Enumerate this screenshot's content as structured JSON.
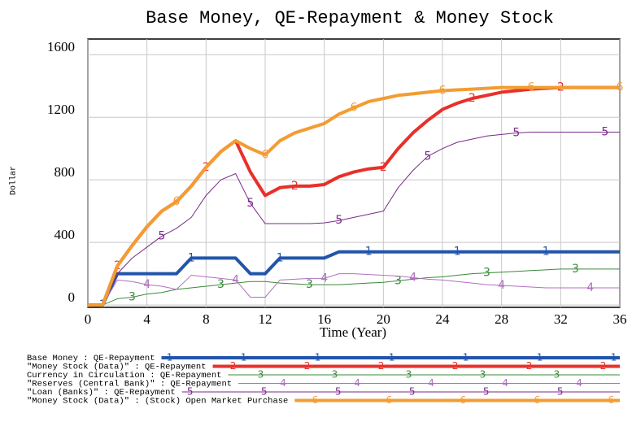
{
  "chart_data": {
    "type": "line",
    "title": "Base Money, QE-Repayment & Money Stock",
    "xlabel": "Time (Year)",
    "ylabel": "Dollar",
    "x": [
      0,
      1,
      2,
      3,
      4,
      5,
      6,
      7,
      8,
      9,
      10,
      11,
      12,
      13,
      14,
      15,
      16,
      17,
      18,
      19,
      20,
      21,
      22,
      23,
      24,
      25,
      26,
      27,
      28,
      29,
      30,
      31,
      32,
      33,
      34,
      35,
      36
    ],
    "xlim": [
      0,
      36
    ],
    "xticks": [
      0,
      4,
      8,
      12,
      16,
      20,
      24,
      28,
      32,
      36
    ],
    "ylim": [
      -15,
      1700
    ],
    "yticks": [
      0,
      400,
      800,
      1200,
      1600
    ],
    "grid": true,
    "series": [
      {
        "name": "Base Money : QE-Repayment",
        "marker": "1",
        "color": "#2255aa",
        "linewidth": 4,
        "values": [
          0,
          0,
          200,
          200,
          200,
          200,
          200,
          300,
          300,
          300,
          300,
          200,
          200,
          300,
          300,
          300,
          300,
          340,
          340,
          340,
          340,
          340,
          340,
          340,
          340,
          340,
          340,
          340,
          340,
          340,
          340,
          340,
          340,
          340,
          340,
          340,
          340
        ]
      },
      {
        "name": "\"Money Stock (Data)\" : QE-Repayment",
        "marker": "2",
        "color": "#e8302a",
        "linewidth": 4,
        "values": [
          0,
          0,
          250,
          380,
          500,
          600,
          660,
          760,
          880,
          980,
          1050,
          850,
          700,
          750,
          760,
          760,
          770,
          820,
          850,
          870,
          880,
          1000,
          1100,
          1180,
          1250,
          1290,
          1320,
          1340,
          1360,
          1370,
          1380,
          1385,
          1390,
          1390,
          1390,
          1390,
          1390
        ]
      },
      {
        "name": "Currency in Circulation : QE-Repayment",
        "marker": "3",
        "color": "#3a8a3a",
        "linewidth": 1,
        "values": [
          0,
          0,
          40,
          50,
          70,
          80,
          100,
          110,
          120,
          130,
          140,
          150,
          150,
          140,
          135,
          130,
          130,
          130,
          135,
          140,
          145,
          155,
          165,
          175,
          180,
          190,
          200,
          205,
          210,
          215,
          220,
          225,
          230,
          230,
          230,
          230,
          230
        ]
      },
      {
        "name": "\"Reserves (Central Bank)\" : QE-Repayment",
        "marker": "4",
        "color": "#b070c0",
        "linewidth": 1,
        "values": [
          0,
          0,
          160,
          150,
          130,
          120,
          100,
          190,
          180,
          170,
          160,
          50,
          50,
          160,
          165,
          170,
          170,
          200,
          200,
          195,
          190,
          185,
          175,
          165,
          160,
          150,
          140,
          130,
          125,
          120,
          115,
          110,
          110,
          110,
          110,
          110,
          110
        ]
      },
      {
        "name": "\"Loan (Banks)\" : QE-Repayment",
        "marker": "5",
        "color": "#7a2a8a",
        "linewidth": 1,
        "values": [
          0,
          0,
          200,
          300,
          370,
          440,
          490,
          560,
          700,
          800,
          840,
          650,
          520,
          520,
          520,
          520,
          525,
          540,
          560,
          580,
          600,
          750,
          860,
          950,
          1000,
          1040,
          1060,
          1080,
          1090,
          1100,
          1105,
          1105,
          1105,
          1105,
          1105,
          1105,
          1105
        ]
      },
      {
        "name": "\"Money Stock (Data)\" : (Stock) Open Market Purchase",
        "marker": "6",
        "color": "#f39c32",
        "linewidth": 4,
        "values": [
          0,
          0,
          250,
          380,
          500,
          600,
          660,
          760,
          880,
          980,
          1050,
          1000,
          960,
          1050,
          1100,
          1130,
          1160,
          1220,
          1260,
          1300,
          1320,
          1340,
          1350,
          1360,
          1370,
          1375,
          1380,
          1385,
          1390,
          1390,
          1390,
          1390,
          1390,
          1390,
          1390,
          1390,
          1390
        ]
      }
    ]
  }
}
